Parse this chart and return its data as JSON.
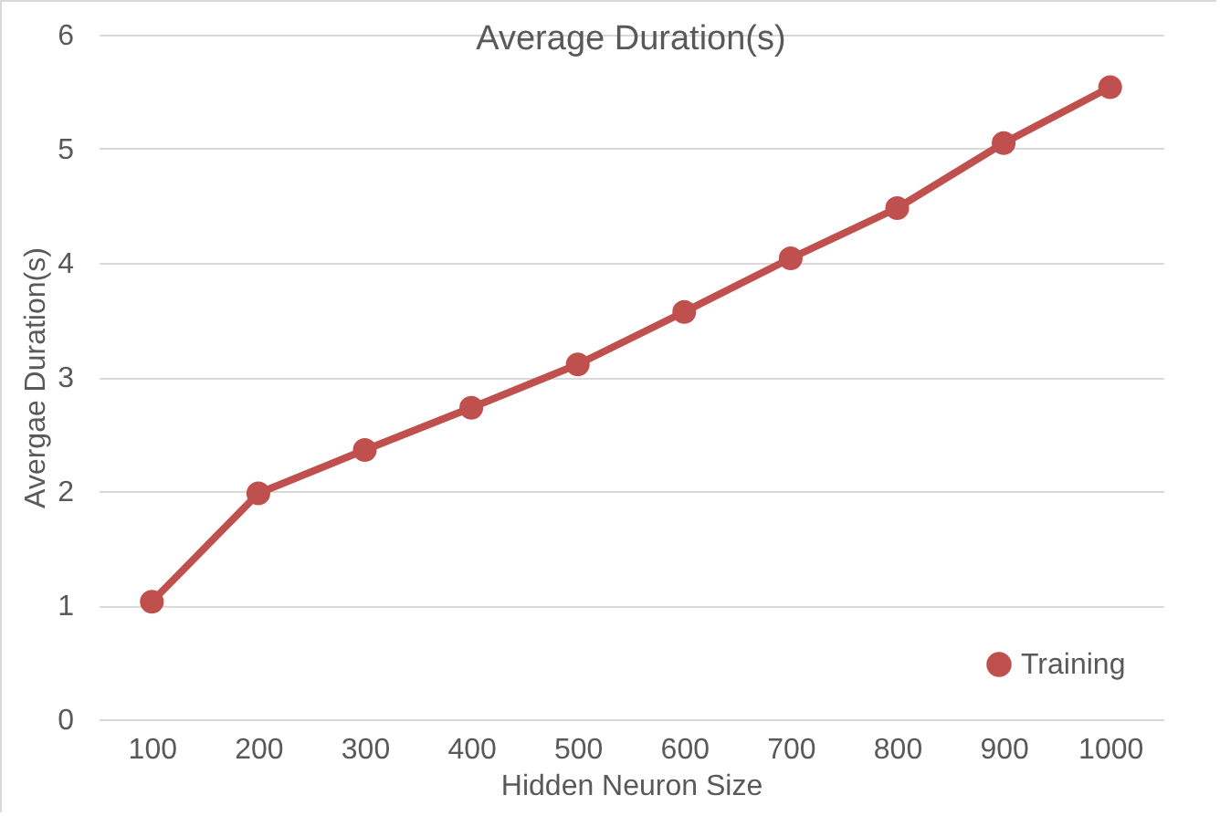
{
  "chart_data": {
    "type": "line",
    "title": "Average Duration(s)",
    "xlabel": "Hidden Neuron Size",
    "ylabel": "Avergae Duration(s)",
    "categories": [
      "100",
      "200",
      "300",
      "400",
      "500",
      "600",
      "700",
      "800",
      "900",
      "1000"
    ],
    "series": [
      {
        "name": "Training",
        "color": "#c0504d",
        "values": [
          1.03,
          1.98,
          2.36,
          2.73,
          3.11,
          3.57,
          4.04,
          4.48,
          5.05,
          5.54
        ]
      }
    ],
    "ylim": [
      0,
      6
    ],
    "yticks": [
      0,
      1,
      2,
      3,
      4,
      5,
      6
    ],
    "grid": "y",
    "legend": "bottom right",
    "marker": "circle",
    "line_style": "solid"
  }
}
